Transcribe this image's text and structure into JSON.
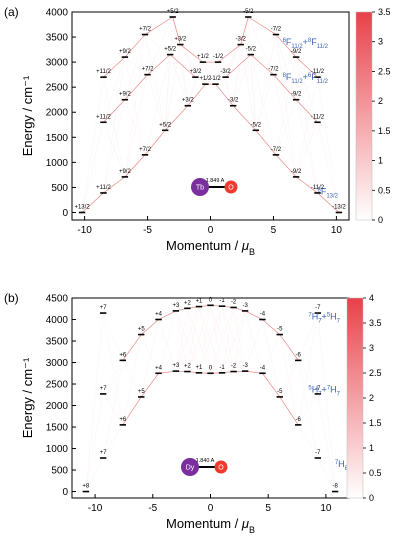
{
  "chart_data": [
    {
      "type": "scatter",
      "panel_label": "(a)",
      "xlabel": "Momentum / μB",
      "ylabel": "Energy / cm⁻¹",
      "xlim": [
        -11,
        11
      ],
      "ylim": [
        -150,
        4000
      ],
      "xticks": [
        -10,
        -5,
        0,
        5,
        10
      ],
      "yticks": [
        0,
        500,
        1000,
        1500,
        2000,
        2500,
        3000,
        3500,
        4000
      ],
      "colorbar": {
        "range": [
          0,
          3.5
        ],
        "ticks": [
          0,
          0.5,
          1,
          1.5,
          2,
          2.5,
          3,
          3.5
        ]
      },
      "molecule": {
        "metal": "Tb",
        "ligand": "O",
        "bond_length": "1.849 A",
        "metal_color": "#7b2f9e",
        "ligand_color": "#f03a2e"
      },
      "terms": [
        {
          "label": "6F11/2+8F11/2",
          "sup1": "6",
          "base1": "F",
          "sub1": "11/2",
          "sup2": "8",
          "base2": "F",
          "sub2": "11/2",
          "energy": 3300
        },
        {
          "label": "8F11/2+6F11/2",
          "sup1": "8",
          "base1": "F",
          "sub1": "11/2",
          "sup2": "6",
          "base2": "F",
          "sub2": "11/2",
          "energy": 2520
        },
        {
          "label": "8F13/2",
          "sup1": "8",
          "base1": "F",
          "sub1": "13/2",
          "energy": 280
        }
      ],
      "levels": [
        {
          "x": -10.2,
          "y": 0,
          "label": "+13/2"
        },
        {
          "x": -8.5,
          "y": 390,
          "label": "+11/2"
        },
        {
          "x": -6.8,
          "y": 710,
          "label": "+9/2"
        },
        {
          "x": -5.2,
          "y": 1150,
          "label": "+7/2"
        },
        {
          "x": -3.6,
          "y": 1640,
          "label": "+5/2"
        },
        {
          "x": -1.8,
          "y": 2130,
          "label": "+3/2"
        },
        {
          "x": -0.4,
          "y": 2560,
          "label": "+1/2"
        },
        {
          "x": 0.4,
          "y": 2560,
          "label": "-1/2"
        },
        {
          "x": 1.8,
          "y": 2130,
          "label": "-3/2"
        },
        {
          "x": 3.6,
          "y": 1640,
          "label": "-5/2"
        },
        {
          "x": 5.2,
          "y": 1150,
          "label": "-7/2"
        },
        {
          "x": 6.8,
          "y": 710,
          "label": "-9/2"
        },
        {
          "x": 8.5,
          "y": 390,
          "label": "-11/2"
        },
        {
          "x": 10.2,
          "y": 0,
          "label": "-13/2"
        },
        {
          "x": -8.5,
          "y": 1800,
          "label": "+11/2"
        },
        {
          "x": -6.8,
          "y": 2250,
          "label": "+9/2"
        },
        {
          "x": -5.0,
          "y": 2750,
          "label": "+7/2"
        },
        {
          "x": -3.2,
          "y": 3150,
          "label": "+5/2"
        },
        {
          "x": -1.2,
          "y": 2700,
          "label": "+3/2"
        },
        {
          "x": 1.2,
          "y": 2700,
          "label": "-3/2"
        },
        {
          "x": 3.2,
          "y": 3150,
          "label": "-5/2"
        },
        {
          "x": 5.0,
          "y": 2750,
          "label": "-7/2"
        },
        {
          "x": 6.8,
          "y": 2250,
          "label": "-9/2"
        },
        {
          "x": 8.5,
          "y": 1800,
          "label": "-11/2"
        },
        {
          "x": -8.5,
          "y": 2700,
          "label": "+11/2"
        },
        {
          "x": -6.8,
          "y": 3100,
          "label": "+9/2"
        },
        {
          "x": -5.2,
          "y": 3550,
          "label": "+7/2"
        },
        {
          "x": -3.0,
          "y": 3900,
          "label": "+5/2"
        },
        {
          "x": -2.4,
          "y": 3350,
          "label": "+3/2"
        },
        {
          "x": -0.6,
          "y": 3000,
          "label": "+1/2"
        },
        {
          "x": 0.6,
          "y": 3000,
          "label": "-1/2"
        },
        {
          "x": 2.4,
          "y": 3350,
          "label": "-3/2"
        },
        {
          "x": 3.0,
          "y": 3900,
          "label": "-5/2"
        },
        {
          "x": 5.2,
          "y": 3550,
          "label": "-7/2"
        },
        {
          "x": 6.8,
          "y": 3100,
          "label": "-9/2"
        },
        {
          "x": 8.5,
          "y": 2700,
          "label": "-11/2"
        }
      ]
    },
    {
      "type": "scatter",
      "panel_label": "(b)",
      "xlabel": "Momentum / μB",
      "ylabel": "Energy / cm⁻¹",
      "xlim": [
        -12,
        12
      ],
      "ylim": [
        -150,
        4500
      ],
      "xticks": [
        -10,
        -5,
        0,
        5,
        10
      ],
      "yticks": [
        0,
        500,
        1000,
        1500,
        2000,
        2500,
        3000,
        3500,
        4000,
        4500
      ],
      "colorbar": {
        "range": [
          0,
          4
        ],
        "ticks": [
          0,
          0.5,
          1,
          1.5,
          2,
          2.5,
          3,
          3.5,
          4
        ]
      },
      "molecule": {
        "metal": "Dy",
        "ligand": "O",
        "bond_length": "1.840 A",
        "metal_color": "#7b2f9e",
        "ligand_color": "#f03a2e"
      },
      "terms": [
        {
          "label": "7H7+5H7",
          "sup1": "7",
          "base1": "H",
          "sub1": "7",
          "sup2": "5",
          "base2": "H",
          "sub2": "7",
          "energy": 3950
        },
        {
          "label": "5H7+7H7",
          "sup1": "5",
          "base1": "H",
          "sub1": "7",
          "sup2": "7",
          "base2": "H",
          "sub2": "7",
          "energy": 2400
        },
        {
          "label": "7H8",
          "sup1": "7",
          "base1": "H",
          "sub1": "8",
          "energy": 480
        }
      ],
      "levels": [
        {
          "x": -10.8,
          "y": 0,
          "label": "+8"
        },
        {
          "x": -9.3,
          "y": 780,
          "label": "+7"
        },
        {
          "x": -7.6,
          "y": 1550,
          "label": "+6"
        },
        {
          "x": -6.0,
          "y": 2200,
          "label": "+5"
        },
        {
          "x": -4.5,
          "y": 2750,
          "label": "+4"
        },
        {
          "x": -3.0,
          "y": 2800,
          "label": "+3"
        },
        {
          "x": -2.0,
          "y": 2790,
          "label": "+2"
        },
        {
          "x": -1.0,
          "y": 2760,
          "label": "+1"
        },
        {
          "x": 0.0,
          "y": 2750,
          "label": "0"
        },
        {
          "x": 1.0,
          "y": 2760,
          "label": "-1"
        },
        {
          "x": 2.0,
          "y": 2790,
          "label": "-2"
        },
        {
          "x": 3.0,
          "y": 2800,
          "label": "-3"
        },
        {
          "x": 4.5,
          "y": 2750,
          "label": "-4"
        },
        {
          "x": 6.0,
          "y": 2200,
          "label": "-5"
        },
        {
          "x": 7.6,
          "y": 1550,
          "label": "-6"
        },
        {
          "x": 9.3,
          "y": 780,
          "label": "-7"
        },
        {
          "x": 10.8,
          "y": 0,
          "label": "-8"
        },
        {
          "x": -9.3,
          "y": 2270,
          "label": "+7"
        },
        {
          "x": -7.6,
          "y": 3050,
          "label": "+6"
        },
        {
          "x": -6.0,
          "y": 3650,
          "label": "+5"
        },
        {
          "x": -4.5,
          "y": 4000,
          "label": "+4"
        },
        {
          "x": -3.0,
          "y": 4200,
          "label": "+3"
        },
        {
          "x": -2.0,
          "y": 4260,
          "label": "+2"
        },
        {
          "x": -1.0,
          "y": 4300,
          "label": "+1"
        },
        {
          "x": 0.0,
          "y": 4330,
          "label": "0"
        },
        {
          "x": 1.0,
          "y": 4310,
          "label": "-1"
        },
        {
          "x": 2.0,
          "y": 4280,
          "label": "-2"
        },
        {
          "x": 3.0,
          "y": 4200,
          "label": "-3"
        },
        {
          "x": 4.5,
          "y": 4000,
          "label": "-4"
        },
        {
          "x": 6.0,
          "y": 3650,
          "label": "-5"
        },
        {
          "x": 7.6,
          "y": 3050,
          "label": "-6"
        },
        {
          "x": 9.3,
          "y": 2270,
          "label": "-7"
        },
        {
          "x": -9.3,
          "y": 4150,
          "label": "+7"
        },
        {
          "x": 9.3,
          "y": 4150,
          "label": "-7"
        }
      ]
    }
  ]
}
